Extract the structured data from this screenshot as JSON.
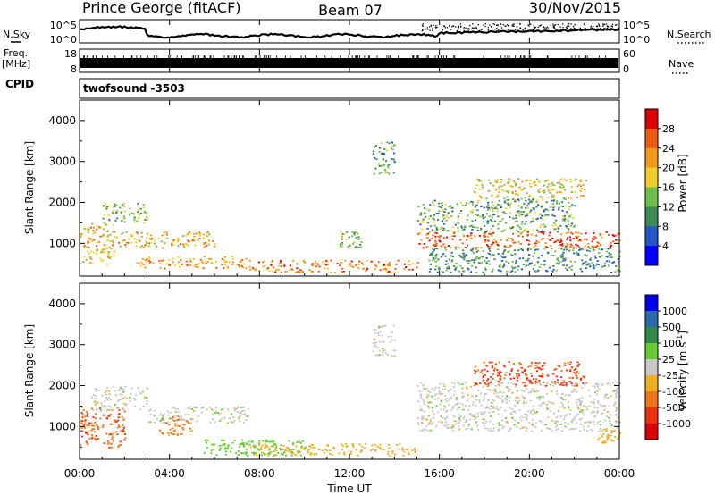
{
  "header": {
    "title": "Prince George (fitACF)",
    "beam": "Beam 07",
    "date": "30/Nov/2015"
  },
  "top_panels": {
    "nsky_label": "N.Sky",
    "nsky_ticks": [
      "10^5",
      "10^0"
    ],
    "nsearch_label": "N.Search",
    "nsearch_ticks": [
      "10^5",
      "10^0"
    ],
    "freq_label": "Freq.",
    "freq_unit": "[MHz]",
    "freq_ticks": [
      "18",
      "8"
    ],
    "nave_label": "Nave",
    "nave_ticks": [
      "60",
      "0"
    ],
    "cpid_label": "CPID",
    "cpid_value": "twofsound -3503"
  },
  "chart_data": [
    {
      "type": "heatmap",
      "panel": "power",
      "ylabel": "Slant Range [km]",
      "xlabel": "",
      "xlim": [
        0,
        24
      ],
      "ylim": [
        200,
        4500
      ],
      "yticks": [
        1000,
        2000,
        3000,
        4000
      ],
      "colorbar": {
        "label": "Power [dB]",
        "ticks": [
          "4",
          "8",
          "12",
          "16",
          "20",
          "24",
          "28"
        ],
        "colors": [
          "#0000ff",
          "#2255c8",
          "#3d8a54",
          "#6fbf4a",
          "#f0d028",
          "#f59a18",
          "#ee5a10",
          "#dd0000"
        ]
      },
      "regions": [
        {
          "t0": 0.0,
          "t1": 1.5,
          "r0": 500,
          "r1": 1500,
          "level": 20
        },
        {
          "t0": 1.0,
          "t1": 3.0,
          "r0": 1500,
          "r1": 2000,
          "level": 14
        },
        {
          "t0": 1.5,
          "t1": 6.0,
          "r0": 900,
          "r1": 1300,
          "level": 20
        },
        {
          "t0": 2.5,
          "t1": 7.5,
          "r0": 400,
          "r1": 700,
          "level": 22
        },
        {
          "t0": 7.5,
          "t1": 15.0,
          "r0": 300,
          "r1": 600,
          "level": 24
        },
        {
          "t0": 11.5,
          "t1": 12.5,
          "r0": 900,
          "r1": 1300,
          "level": 14
        },
        {
          "t0": 13.0,
          "t1": 14.0,
          "r0": 2700,
          "r1": 3500,
          "level": 12
        },
        {
          "t0": 15.0,
          "t1": 24.0,
          "r0": 900,
          "r1": 1300,
          "level": 26
        },
        {
          "t0": 15.0,
          "t1": 22.0,
          "r0": 1300,
          "r1": 2100,
          "level": 12
        },
        {
          "t0": 17.5,
          "t1": 22.5,
          "r0": 2100,
          "r1": 2600,
          "level": 18
        },
        {
          "t0": 15.5,
          "t1": 24.0,
          "r0": 300,
          "r1": 900,
          "level": 10
        }
      ]
    },
    {
      "type": "heatmap",
      "panel": "velocity",
      "ylabel": "Slant Range [km]",
      "xlabel": "Time UT",
      "xlim": [
        0,
        24
      ],
      "ylim": [
        200,
        4500
      ],
      "yticks": [
        1000,
        2000,
        3000,
        4000
      ],
      "xticks": [
        "00:00",
        "04:00",
        "08:00",
        "12:00",
        "16:00",
        "20:00",
        "00:00"
      ],
      "colorbar": {
        "label": "Velocity [m s^-1]",
        "ticks": [
          "1000",
          "500",
          "100",
          "25",
          "-25",
          "-100",
          "-500",
          "-1000"
        ],
        "colors": [
          "#0000ee",
          "#2a6aa8",
          "#2f8a4a",
          "#66cc33",
          "#c8c8c8",
          "#f2b020",
          "#f07818",
          "#ee3010",
          "#dd0000"
        ]
      },
      "regions": [
        {
          "t0": 0.0,
          "t1": 2.0,
          "r0": 500,
          "r1": 1500,
          "level": -400
        },
        {
          "t0": 0.5,
          "t1": 3.0,
          "r0": 1400,
          "r1": 2000,
          "level": 0
        },
        {
          "t0": 3.5,
          "t1": 5.0,
          "r0": 800,
          "r1": 1300,
          "level": -300
        },
        {
          "t0": 3.0,
          "t1": 7.5,
          "r0": 1100,
          "r1": 1500,
          "level": 0
        },
        {
          "t0": 7.5,
          "t1": 15.0,
          "r0": 300,
          "r1": 600,
          "level": -60
        },
        {
          "t0": 5.5,
          "t1": 10.0,
          "r0": 300,
          "r1": 700,
          "level": 60
        },
        {
          "t0": 13.0,
          "t1": 14.0,
          "r0": 2700,
          "r1": 3500,
          "level": 0
        },
        {
          "t0": 15.0,
          "t1": 24.0,
          "r0": 900,
          "r1": 2100,
          "level": 0
        },
        {
          "t0": 17.5,
          "t1": 22.5,
          "r0": 2000,
          "r1": 2600,
          "level": -600
        },
        {
          "t0": 23.0,
          "t1": 24.0,
          "r0": 600,
          "r1": 1000,
          "level": -60
        }
      ]
    }
  ]
}
